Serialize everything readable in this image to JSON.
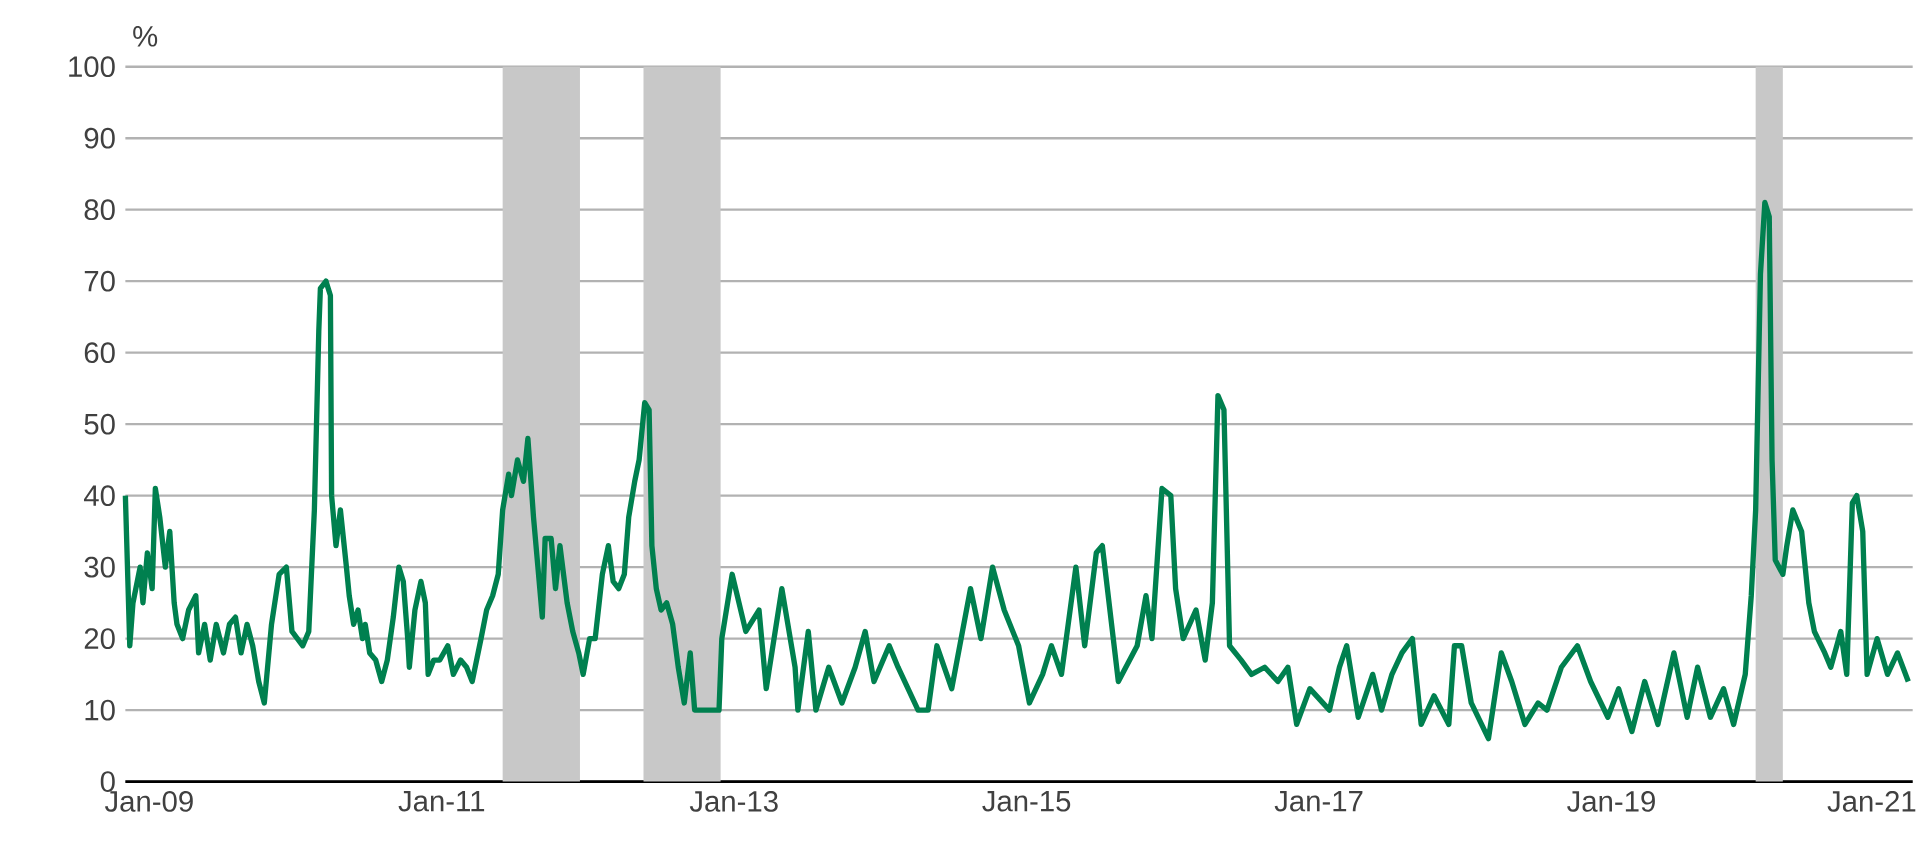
{
  "chart_data": {
    "type": "line",
    "ylabel": "%",
    "x": [
      "2008-11-02",
      "2008-11-13",
      "2008-11-21",
      "2008-12-09",
      "2008-12-16",
      "2008-12-27",
      "2009-01-08",
      "2009-01-16",
      "2009-01-27",
      "2009-02-10",
      "2009-02-21",
      "2009-03-04",
      "2009-03-11",
      "2009-03-25",
      "2009-04-09",
      "2009-04-27",
      "2009-05-04",
      "2009-05-19",
      "2009-06-02",
      "2009-06-17",
      "2009-07-05",
      "2009-07-20",
      "2009-08-04",
      "2009-08-18",
      "2009-09-02",
      "2009-09-16",
      "2009-10-01",
      "2009-10-15",
      "2009-11-02",
      "2009-11-21",
      "2009-12-09",
      "2009-12-23",
      "2010-01-19",
      "2010-02-03",
      "2010-02-17",
      "2010-02-28",
      "2010-03-04",
      "2010-03-18",
      "2010-03-29",
      "2010-04-01",
      "2010-04-12",
      "2010-04-23",
      "2010-05-08",
      "2010-05-15",
      "2010-05-26",
      "2010-06-06",
      "2010-06-17",
      "2010-06-24",
      "2010-07-05",
      "2010-07-20",
      "2010-08-04",
      "2010-08-18",
      "2010-09-02",
      "2010-09-16",
      "2010-09-27",
      "2010-10-08",
      "2010-10-12",
      "2010-10-26",
      "2010-11-10",
      "2010-11-21",
      "2010-11-28",
      "2010-12-12",
      "2010-12-27",
      "2011-01-16",
      "2011-01-30",
      "2011-02-17",
      "2011-03-04",
      "2011-03-18",
      "2011-04-09",
      "2011-04-23",
      "2011-05-08",
      "2011-05-22",
      "2011-06-02",
      "2011-06-17",
      "2011-06-24",
      "2011-07-09",
      "2011-07-24",
      "2011-08-04",
      "2011-08-18",
      "2011-08-29",
      "2011-09-09",
      "2011-09-16",
      "2011-10-01",
      "2011-10-12",
      "2011-10-23",
      "2011-11-10",
      "2011-11-24",
      "2011-12-09",
      "2011-12-20",
      "2012-01-05",
      "2012-01-19",
      "2012-02-06",
      "2012-02-21",
      "2012-03-04",
      "2012-03-18",
      "2012-04-01",
      "2012-04-12",
      "2012-04-27",
      "2012-05-08",
      "2012-05-22",
      "2012-06-02",
      "2012-06-09",
      "2012-06-20",
      "2012-07-02",
      "2012-07-16",
      "2012-07-31",
      "2012-08-14",
      "2012-08-29",
      "2012-09-13",
      "2012-09-24",
      "2012-11-24",
      "2012-12-01",
      "2012-12-27",
      "2013-01-30",
      "2013-03-04",
      "2013-03-22",
      "2013-04-30",
      "2013-06-02",
      "2013-06-09",
      "2013-07-05",
      "2013-07-24",
      "2013-08-25",
      "2013-09-27",
      "2013-10-30",
      "2013-11-24",
      "2013-12-16",
      "2014-01-23",
      "2014-02-14",
      "2014-04-05",
      "2014-04-30",
      "2014-05-22",
      "2014-06-28",
      "2014-08-14",
      "2014-09-09",
      "2014-10-08",
      "2014-11-06",
      "2014-12-12",
      "2015-01-08",
      "2015-02-10",
      "2015-03-04",
      "2015-03-29",
      "2015-05-04",
      "2015-05-26",
      "2015-06-24",
      "2015-07-09",
      "2015-08-18",
      "2015-10-04",
      "2015-10-26",
      "2015-11-10",
      "2015-12-05",
      "2015-12-27",
      "2016-01-08",
      "2016-01-27",
      "2016-02-28",
      "2016-03-22",
      "2016-04-09",
      "2016-04-23",
      "2016-05-08",
      "2016-05-22",
      "2016-06-20",
      "2016-07-16",
      "2016-08-18",
      "2016-09-20",
      "2016-10-15",
      "2016-11-06",
      "2016-12-09",
      "2017-01-27",
      "2017-02-21",
      "2017-03-11",
      "2017-04-09",
      "2017-05-15",
      "2017-06-06",
      "2017-07-02",
      "2017-07-27",
      "2017-08-22",
      "2017-09-13",
      "2017-10-15",
      "2017-11-21",
      "2017-12-05",
      "2017-12-23",
      "2018-01-16",
      "2018-02-28",
      "2018-04-01",
      "2018-04-27",
      "2018-05-30",
      "2018-07-02",
      "2018-07-24",
      "2018-08-29",
      "2018-10-08",
      "2018-11-10",
      "2018-12-23",
      "2019-01-19",
      "2019-02-21",
      "2019-03-25",
      "2019-04-27",
      "2019-06-06",
      "2019-07-09",
      "2019-08-04",
      "2019-09-05",
      "2019-10-08",
      "2019-11-02",
      "2019-12-01",
      "2019-12-16",
      "2019-12-27",
      "2020-01-08",
      "2020-01-19",
      "2020-01-30",
      "2020-02-06",
      "2020-02-14",
      "2020-03-04",
      "2020-03-14",
      "2020-03-29",
      "2020-04-20",
      "2020-05-08",
      "2020-05-22",
      "2020-06-17",
      "2020-07-02",
      "2020-07-27",
      "2020-08-11",
      "2020-08-25",
      "2020-09-05",
      "2020-09-20",
      "2020-10-01",
      "2020-10-26",
      "2020-11-21",
      "2020-12-16",
      "2021-01-12"
    ],
    "series": [
      {
        "color": "#00804f",
        "values": [
          40,
          19,
          25,
          30,
          25,
          32,
          27,
          41,
          37,
          30,
          35,
          25,
          22,
          20,
          24,
          26,
          18,
          22,
          17,
          22,
          18,
          22,
          23,
          18,
          22,
          19,
          14,
          11,
          22,
          29,
          30,
          21,
          19,
          21,
          38,
          63,
          69,
          70,
          68,
          40,
          33,
          38,
          30,
          26,
          22,
          24,
          20,
          22,
          18,
          17,
          14,
          17,
          23,
          30,
          28,
          20,
          16,
          24,
          28,
          25,
          15,
          17,
          17,
          19,
          15,
          17,
          16,
          14,
          20,
          24,
          26,
          29,
          38,
          43,
          40,
          45,
          42,
          48,
          37,
          30,
          23,
          34,
          34,
          27,
          33,
          25,
          21,
          18,
          15,
          20,
          20,
          29,
          33,
          28,
          27,
          29,
          37,
          42,
          45,
          53,
          52,
          33,
          27,
          24,
          25,
          22,
          16,
          11,
          18,
          10,
          10,
          20,
          29,
          21,
          24,
          13,
          27,
          16,
          10,
          21,
          10,
          16,
          11,
          16,
          21,
          14,
          19,
          16,
          10,
          10,
          19,
          13,
          27,
          20,
          30,
          24,
          19,
          11,
          15,
          19,
          15,
          30,
          19,
          32,
          33,
          14,
          19,
          26,
          20,
          41,
          40,
          27,
          20,
          24,
          17,
          25,
          54,
          52,
          19,
          17,
          15,
          16,
          14,
          16,
          8,
          13,
          10,
          16,
          19,
          9,
          15,
          10,
          15,
          18,
          20,
          8,
          12,
          8,
          19,
          19,
          11,
          6,
          18,
          14,
          8,
          11,
          10,
          16,
          19,
          14,
          9,
          13,
          7,
          14,
          8,
          18,
          9,
          16,
          9,
          13,
          8,
          15,
          26,
          38,
          71,
          81,
          79,
          45,
          31,
          29,
          33,
          38,
          35,
          25,
          21,
          18,
          16,
          21,
          15,
          39,
          40,
          35,
          15,
          20,
          15,
          18,
          14
        ]
      }
    ],
    "xlim": [
      "2008-11-02",
      "2021-01-23"
    ],
    "ylim": [
      0,
      100
    ],
    "xticks": [
      {
        "value": "2009-01-01",
        "label": "Jan-09"
      },
      {
        "value": "2011-01-01",
        "label": "Jan-11"
      },
      {
        "value": "2013-01-01",
        "label": "Jan-13"
      },
      {
        "value": "2015-01-01",
        "label": "Jan-15"
      },
      {
        "value": "2017-01-01",
        "label": "Jan-17"
      },
      {
        "value": "2019-01-01",
        "label": "Jan-19"
      },
      {
        "value": "2021-01-01",
        "label": "Jan-21"
      }
    ],
    "yticks": [
      0,
      10,
      20,
      30,
      40,
      50,
      60,
      70,
      80,
      90,
      100
    ],
    "grid": "y",
    "bands": [
      {
        "axis": "x",
        "from": "2011-06-02",
        "to": "2011-12-12",
        "color": "#c8c8c8"
      },
      {
        "axis": "x",
        "from": "2012-05-19",
        "to": "2012-11-28",
        "color": "#c8c8c8"
      },
      {
        "axis": "x",
        "from": "2019-12-27",
        "to": "2020-03-04",
        "color": "#c8c8c8"
      }
    ]
  }
}
